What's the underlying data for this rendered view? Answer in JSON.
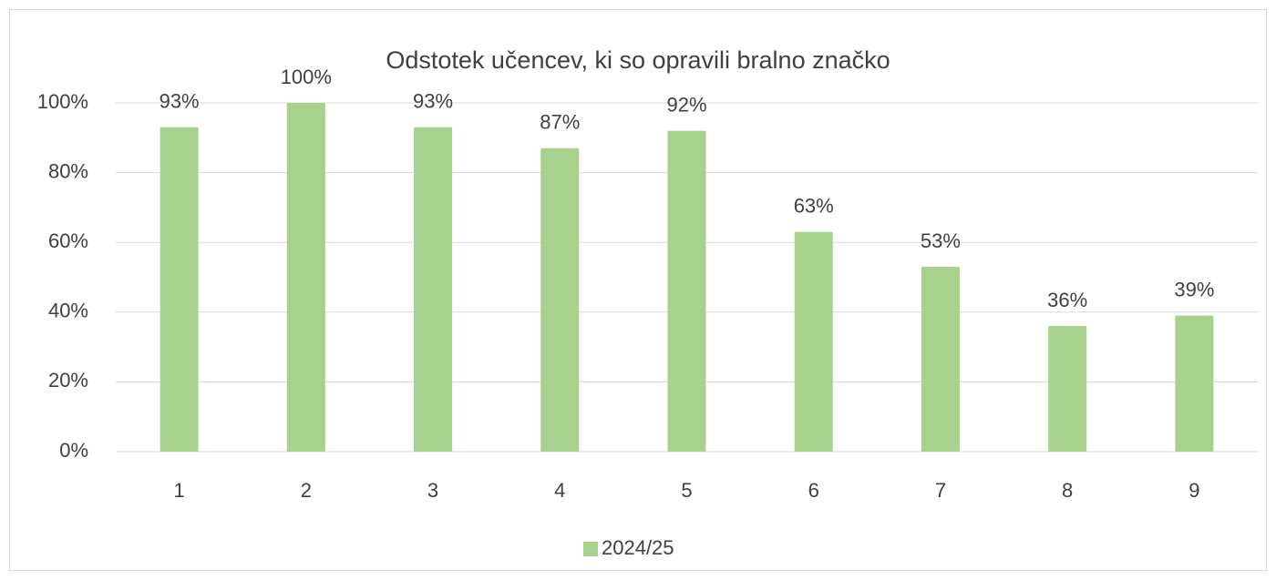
{
  "chart_data": {
    "type": "bar",
    "title": "Odstotek učencev, ki so opravili bralno značko",
    "categories": [
      "1",
      "2",
      "3",
      "4",
      "5",
      "6",
      "7",
      "8",
      "9"
    ],
    "series": [
      {
        "name": "2024/25",
        "color": "#a9d18e",
        "values": [
          93,
          100,
          93,
          87,
          92,
          63,
          53,
          36,
          39
        ],
        "value_labels": [
          "93%",
          "100%",
          "93%",
          "87%",
          "92%",
          "63%",
          "53%",
          "36%",
          "39%"
        ]
      }
    ],
    "ylim": [
      0,
      100
    ],
    "yticks": [
      {
        "value": 0,
        "label": "0%"
      },
      {
        "value": 20,
        "label": "20%"
      },
      {
        "value": 40,
        "label": "40%"
      },
      {
        "value": 60,
        "label": "60%"
      },
      {
        "value": 80,
        "label": "80%"
      },
      {
        "value": 100,
        "label": "100%"
      }
    ],
    "grid": true,
    "legend": "bottom"
  }
}
